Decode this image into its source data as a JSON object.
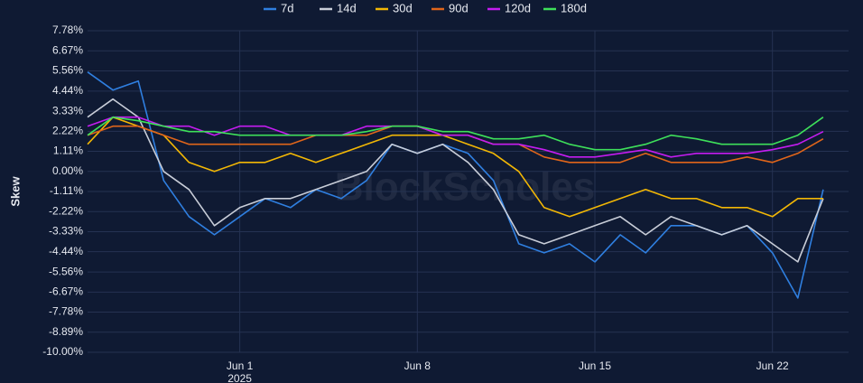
{
  "chart_data": {
    "type": "line",
    "y_label": "Skew",
    "watermark": "BlockScholes",
    "x": [
      "2025-05-26",
      "2025-05-27",
      "2025-05-28",
      "2025-05-29",
      "2025-05-30",
      "2025-05-31",
      "2025-06-01",
      "2025-06-02",
      "2025-06-03",
      "2025-06-04",
      "2025-06-05",
      "2025-06-06",
      "2025-06-07",
      "2025-06-08",
      "2025-06-09",
      "2025-06-10",
      "2025-06-11",
      "2025-06-12",
      "2025-06-13",
      "2025-06-14",
      "2025-06-15",
      "2025-06-16",
      "2025-06-17",
      "2025-06-18",
      "2025-06-19",
      "2025-06-20",
      "2025-06-21",
      "2025-06-22",
      "2025-06-23",
      "2025-06-24"
    ],
    "xlim": [
      "2025-05-26",
      "2025-06-25"
    ],
    "xticks": [
      {
        "value": "2025-06-01",
        "label": "Jun 1"
      },
      {
        "value": "2025-06-08",
        "label": "Jun 8"
      },
      {
        "value": "2025-06-15",
        "label": "Jun 15"
      },
      {
        "value": "2025-06-22",
        "label": "Jun 22"
      }
    ],
    "x_year_label": "2025",
    "ylim": [
      -10,
      7.78
    ],
    "yticks": [
      {
        "value": 7.78,
        "label": "7.78%"
      },
      {
        "value": 6.67,
        "label": "6.67%"
      },
      {
        "value": 5.56,
        "label": "5.56%"
      },
      {
        "value": 4.44,
        "label": "4.44%"
      },
      {
        "value": 3.33,
        "label": "3.33%"
      },
      {
        "value": 2.22,
        "label": "2.22%"
      },
      {
        "value": 1.11,
        "label": "1.11%"
      },
      {
        "value": 0,
        "label": "0.00%"
      },
      {
        "value": -1.11,
        "label": "-1.11%"
      },
      {
        "value": -2.22,
        "label": "-2.22%"
      },
      {
        "value": -3.33,
        "label": "-3.33%"
      },
      {
        "value": -4.44,
        "label": "-4.44%"
      },
      {
        "value": -5.56,
        "label": "-5.56%"
      },
      {
        "value": -6.67,
        "label": "-6.67%"
      },
      {
        "value": -7.78,
        "label": "-7.78%"
      },
      {
        "value": -8.89,
        "label": "-8.89%"
      },
      {
        "value": -10,
        "label": "-10.00%"
      }
    ],
    "grid": true,
    "series": [
      {
        "name": "7d",
        "color": "#2f7fe0",
        "values": [
          5.5,
          4.5,
          5.0,
          -0.5,
          -2.5,
          -3.5,
          -2.5,
          -1.5,
          -2.0,
          -1.0,
          -1.5,
          -0.5,
          1.5,
          1.0,
          1.5,
          1.0,
          -0.5,
          -4.0,
          -4.5,
          -4.0,
          -5.0,
          -3.5,
          -4.5,
          -3.0,
          -3.0,
          -3.5,
          -3.0,
          -4.5,
          -7.0,
          -1.0
        ]
      },
      {
        "name": "14d",
        "color": "#c8cdd8",
        "values": [
          3.0,
          4.0,
          3.0,
          0.0,
          -1.0,
          -3.0,
          -2.0,
          -1.5,
          -1.5,
          -1.0,
          -0.5,
          0.0,
          1.5,
          1.0,
          1.5,
          0.5,
          -1.0,
          -3.5,
          -4.0,
          -3.5,
          -3.0,
          -2.5,
          -3.5,
          -2.5,
          -3.0,
          -3.5,
          -3.0,
          -4.0,
          -5.0,
          -1.5
        ]
      },
      {
        "name": "30d",
        "color": "#f2b705",
        "values": [
          1.5,
          3.0,
          2.5,
          2.0,
          0.5,
          0.0,
          0.5,
          0.5,
          1.0,
          0.5,
          1.0,
          1.5,
          2.0,
          2.0,
          2.0,
          1.5,
          1.0,
          0.0,
          -2.0,
          -2.5,
          -2.0,
          -1.5,
          -1.0,
          -1.5,
          -1.5,
          -2.0,
          -2.0,
          -2.5,
          -1.5,
          -1.5
        ]
      },
      {
        "name": "90d",
        "color": "#e0651a",
        "values": [
          2.0,
          2.5,
          2.5,
          2.0,
          1.5,
          1.5,
          1.5,
          1.5,
          1.5,
          2.0,
          2.0,
          2.0,
          2.5,
          2.5,
          2.0,
          2.0,
          1.5,
          1.5,
          0.8,
          0.5,
          0.5,
          0.5,
          1.0,
          0.5,
          0.5,
          0.5,
          0.8,
          0.5,
          1.0,
          1.8
        ]
      },
      {
        "name": "120d",
        "color": "#c41cf0",
        "values": [
          2.5,
          3.0,
          3.0,
          2.5,
          2.5,
          2.0,
          2.5,
          2.5,
          2.0,
          2.0,
          2.0,
          2.5,
          2.5,
          2.5,
          2.0,
          2.0,
          1.5,
          1.5,
          1.2,
          0.8,
          0.8,
          1.0,
          1.2,
          0.8,
          1.0,
          1.0,
          1.0,
          1.2,
          1.5,
          2.2
        ]
      },
      {
        "name": "180d",
        "color": "#3ee05a",
        "values": [
          2.0,
          3.0,
          2.8,
          2.5,
          2.2,
          2.2,
          2.0,
          2.0,
          2.0,
          2.0,
          2.0,
          2.2,
          2.5,
          2.5,
          2.2,
          2.2,
          1.8,
          1.8,
          2.0,
          1.5,
          1.2,
          1.2,
          1.5,
          2.0,
          1.8,
          1.5,
          1.5,
          1.5,
          2.0,
          3.0
        ]
      }
    ]
  }
}
